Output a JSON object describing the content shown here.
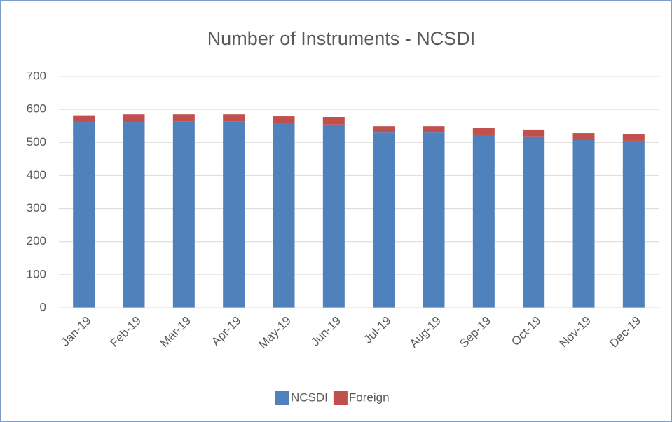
{
  "chart_data": {
    "type": "stacked_bar",
    "title": "Number of Instruments - NCSDI",
    "categories": [
      "Jan-19",
      "Feb-19",
      "Mar-19",
      "Apr-19",
      "May-19",
      "Jun-19",
      "Jul-19",
      "Aug-19",
      "Sep-19",
      "Oct-19",
      "Nov-19",
      "Dec-19"
    ],
    "series": [
      {
        "name": "NCSDI",
        "color": "#4f81bd",
        "values": [
          562,
          562,
          564,
          564,
          560,
          554,
          530,
          530,
          524,
          518,
          507,
          505
        ]
      },
      {
        "name": "Foreign",
        "color": "#c0504d",
        "values": [
          20,
          23,
          21,
          21,
          19,
          23,
          19,
          19,
          19,
          21,
          21,
          21
        ]
      }
    ],
    "ylim": [
      0,
      700
    ],
    "yticks": [
      0,
      100,
      200,
      300,
      400,
      500,
      600,
      700
    ],
    "grid": true,
    "legend": "bottom"
  }
}
